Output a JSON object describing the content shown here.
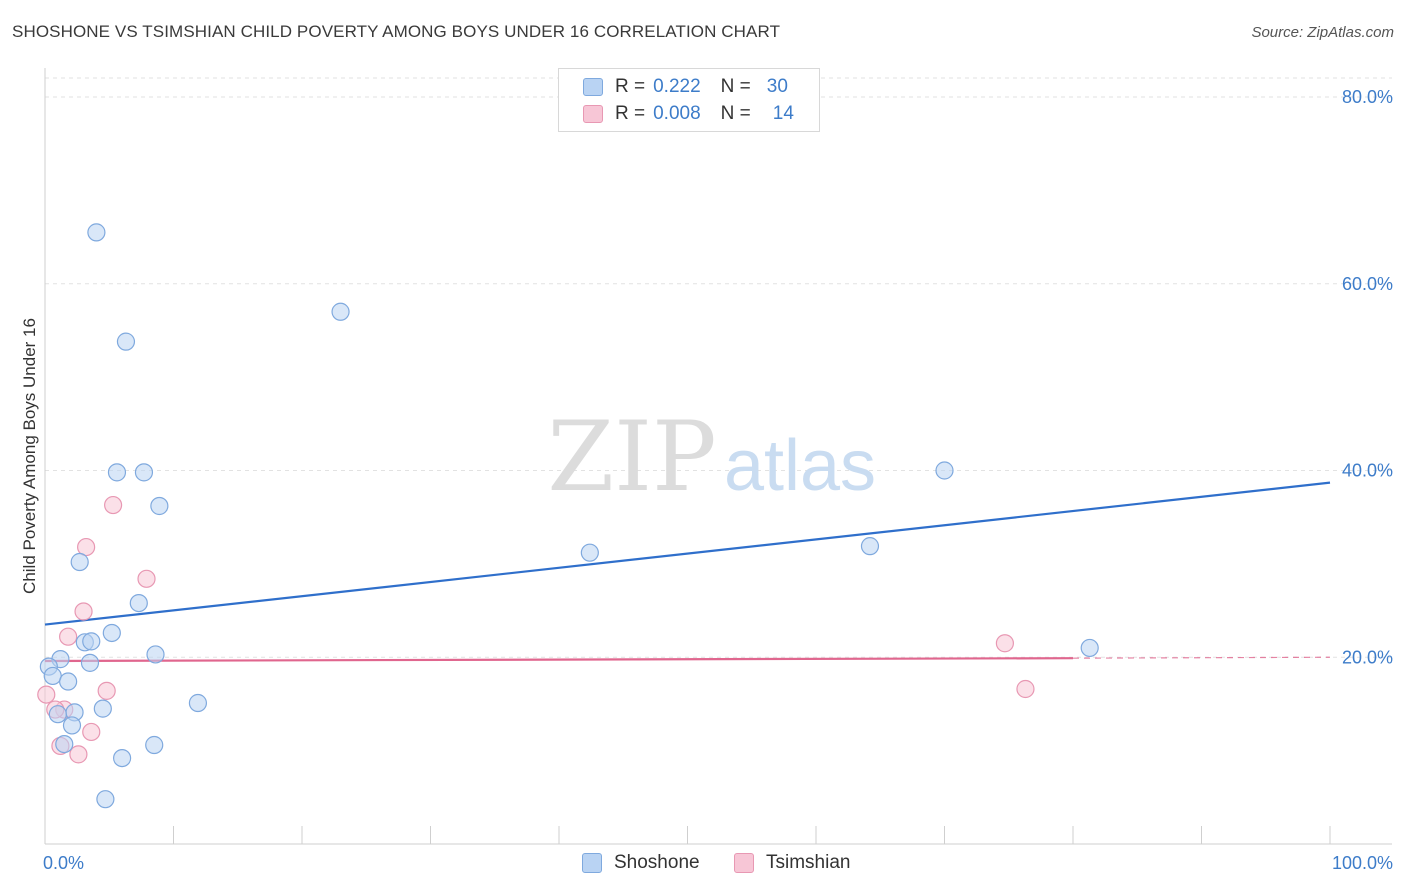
{
  "title": "SHOSHONE VS TSIMSHIAN CHILD POVERTY AMONG BOYS UNDER 16 CORRELATION CHART",
  "source": "Source: ZipAtlas.com",
  "watermark": {
    "zip": "ZIP",
    "atlas": "atlas"
  },
  "colors": {
    "shoshone_fill": "#b9d3f3",
    "shoshone_stroke": "#7fa9de",
    "shoshone_line": "#2f6fcb",
    "tsimshian_fill": "#f7c6d6",
    "tsimshian_stroke": "#e898b3",
    "tsimshian_line": "#e0668e",
    "tick": "#3d7cc9"
  },
  "legend": {
    "r_label": "R =",
    "n_label": "N =",
    "shoshone": {
      "r": "0.222",
      "n": "30"
    },
    "tsimshian": {
      "r": "0.008",
      "n": "14"
    }
  },
  "bottom_legend": {
    "shoshone": "Shoshone",
    "tsimshian": "Tsimshian"
  },
  "chart_data": {
    "type": "scatter",
    "xlabel": "",
    "ylabel": "Child Poverty Among Boys Under 16",
    "xlim": [
      0,
      100
    ],
    "ylim": [
      0,
      80
    ],
    "x_tick_labels": [
      {
        "value": 0,
        "label": "0.0%"
      },
      {
        "value": 100,
        "label": "100.0%"
      }
    ],
    "y_ticks": [
      {
        "value": 20,
        "label": "20.0%"
      },
      {
        "value": 40,
        "label": "40.0%"
      },
      {
        "value": 60,
        "label": "60.0%"
      },
      {
        "value": 80,
        "label": "80.0%"
      }
    ],
    "grid": "horizontal dashed",
    "legend_placement": "top-center",
    "series": [
      {
        "name": "Shoshone",
        "points": [
          [
            4.0,
            65.5
          ],
          [
            6.3,
            53.8
          ],
          [
            23.0,
            57.0
          ],
          [
            5.6,
            39.8
          ],
          [
            7.7,
            39.8
          ],
          [
            8.9,
            36.2
          ],
          [
            2.7,
            30.2
          ],
          [
            7.3,
            25.8
          ],
          [
            5.2,
            22.6
          ],
          [
            3.1,
            21.6
          ],
          [
            3.6,
            21.7
          ],
          [
            8.6,
            20.3
          ],
          [
            1.2,
            19.8
          ],
          [
            3.5,
            19.4
          ],
          [
            0.3,
            19.0
          ],
          [
            0.6,
            18.0
          ],
          [
            1.8,
            17.4
          ],
          [
            11.9,
            15.1
          ],
          [
            4.5,
            14.5
          ],
          [
            1.0,
            13.9
          ],
          [
            2.3,
            14.1
          ],
          [
            2.1,
            12.7
          ],
          [
            1.5,
            10.7
          ],
          [
            8.5,
            10.6
          ],
          [
            6.0,
            9.2
          ],
          [
            4.7,
            4.8
          ],
          [
            42.4,
            31.2
          ],
          [
            64.2,
            31.9
          ],
          [
            70.0,
            40.0
          ],
          [
            81.3,
            21.0
          ]
        ],
        "trend": {
          "x": [
            0,
            100
          ],
          "y": [
            23.5,
            38.7
          ]
        }
      },
      {
        "name": "Tsimshian",
        "points": [
          [
            5.3,
            36.3
          ],
          [
            3.2,
            31.8
          ],
          [
            7.9,
            28.4
          ],
          [
            3.0,
            24.9
          ],
          [
            1.8,
            22.2
          ],
          [
            0.1,
            16.0
          ],
          [
            4.8,
            16.4
          ],
          [
            1.5,
            14.4
          ],
          [
            0.8,
            14.4
          ],
          [
            3.6,
            12.0
          ],
          [
            1.2,
            10.5
          ],
          [
            2.6,
            9.6
          ],
          [
            74.7,
            21.5
          ],
          [
            76.3,
            16.6
          ]
        ],
        "trend": {
          "x": [
            0,
            80
          ],
          "y": [
            19.6,
            19.9
          ]
        },
        "trend_dashed": {
          "x": [
            80,
            100
          ],
          "y": [
            19.9,
            20.0
          ]
        }
      }
    ]
  }
}
